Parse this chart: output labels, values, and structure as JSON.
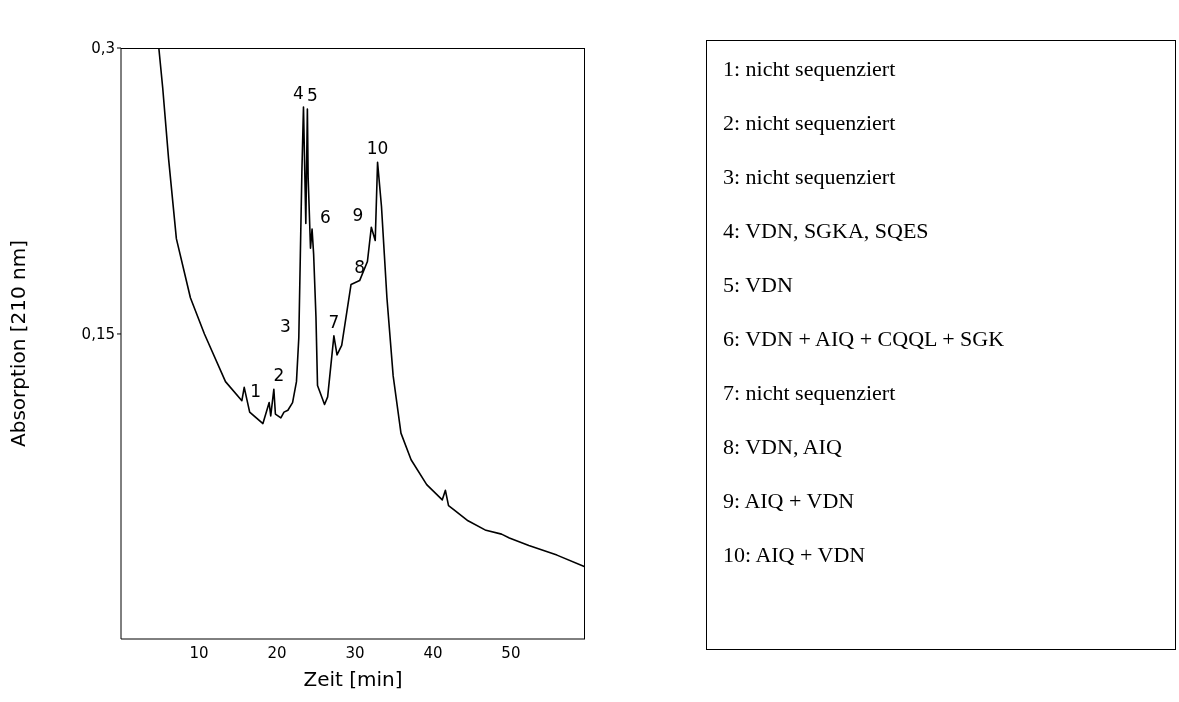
{
  "chart_data": {
    "type": "line",
    "xlabel": "Zeit [min]",
    "ylabel": "Absorption [210 nm]",
    "xlim": [
      0,
      59.5
    ],
    "ylim": [
      -0.01,
      0.3
    ],
    "xticks": [
      10,
      20,
      30,
      40,
      50
    ],
    "yticks": [
      {
        "value": 0.15,
        "label": "0,15"
      },
      {
        "value": 0.3,
        "label": "0,3"
      }
    ],
    "grid": false,
    "legend": false,
    "marker": "none",
    "line_style": "solid",
    "series": [
      {
        "color": "#000000",
        "x": [
          4.85,
          5.35,
          6.1,
          7.1,
          8.9,
          10.7,
          13.4,
          15.5,
          15.8,
          16.5,
          18.2,
          19.0,
          19.2,
          19.6,
          19.8,
          20.5,
          20.9,
          21.4,
          22.0,
          22.5,
          22.8,
          23.2,
          23.4,
          23.7,
          23.9,
          24.0,
          24.3,
          24.5,
          24.7,
          25.0,
          25.2,
          26.1,
          26.5,
          27.3,
          27.7,
          28.3,
          29.5,
          30.6,
          31.6,
          32.1,
          32.6,
          32.9,
          33.4,
          34.1,
          34.9,
          35.9,
          37.2,
          39.2,
          41.2,
          41.6,
          42.0,
          44.5,
          46.8,
          48.8,
          49.8,
          52.3,
          55.9,
          59.4
        ],
        "values": [
          0.3,
          0.279,
          0.242,
          0.2,
          0.169,
          0.15,
          0.125,
          0.115,
          0.122,
          0.109,
          0.103,
          0.114,
          0.107,
          0.121,
          0.108,
          0.106,
          0.109,
          0.11,
          0.114,
          0.125,
          0.148,
          0.236,
          0.269,
          0.208,
          0.268,
          0.232,
          0.195,
          0.205,
          0.192,
          0.159,
          0.123,
          0.113,
          0.117,
          0.149,
          0.139,
          0.144,
          0.176,
          0.178,
          0.188,
          0.206,
          0.199,
          0.24,
          0.217,
          0.169,
          0.128,
          0.098,
          0.084,
          0.071,
          0.063,
          0.068,
          0.06,
          0.052,
          0.047,
          0.045,
          0.043,
          0.039,
          0.034,
          0.028
        ]
      }
    ],
    "annotations": [
      {
        "text": "1",
        "x": 19.0,
        "y": 0.114
      },
      {
        "text": "2",
        "x": 19.6,
        "y": 0.121
      },
      {
        "text": "3",
        "x": 22.8,
        "y": 0.148
      },
      {
        "text": "4",
        "x": 23.4,
        "y": 0.269
      },
      {
        "text": "5",
        "x": 23.9,
        "y": 0.268
      },
      {
        "text": "6",
        "x": 24.5,
        "y": 0.205
      },
      {
        "text": "7",
        "x": 27.3,
        "y": 0.149
      },
      {
        "text": "8",
        "x": 30.6,
        "y": 0.178
      },
      {
        "text": "9",
        "x": 32.1,
        "y": 0.206
      },
      {
        "text": "10",
        "x": 32.9,
        "y": 0.24
      },
      "1: nicht sequenziert",
      "2: nicht sequenziert",
      "3: nicht sequenziert",
      "4: VDN, SGKA, SQES",
      "5: VDN",
      "6: VDN + AIQ + CQQL + SGK",
      "7: nicht sequenziert",
      "8: VDN, AIQ",
      "9: AIQ + VDN",
      "10: AIQ + VDN"
    ]
  }
}
